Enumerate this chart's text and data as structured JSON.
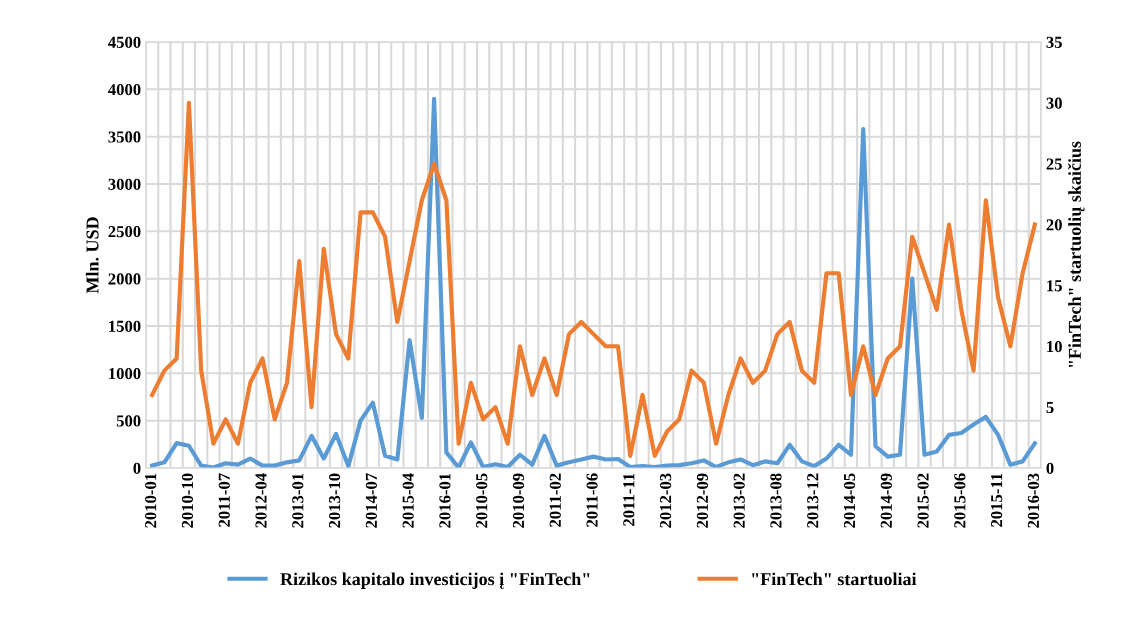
{
  "chart_data": {
    "type": "line",
    "ylabel": "Mln. USD",
    "y2label": "\"FinTech\" startuolių skaičius",
    "categories": [
      "2010-01",
      null,
      null,
      "2010-10",
      null,
      null,
      "2011-07",
      null,
      null,
      "2012-04",
      null,
      null,
      "2013-01",
      null,
      null,
      "2013-10",
      null,
      null,
      "2014-07",
      null,
      null,
      "2015-04",
      null,
      null,
      "2016-01",
      null,
      null,
      "2010-05",
      null,
      null,
      "2010-09",
      null,
      null,
      "2011-02",
      null,
      null,
      "2011-06",
      null,
      null,
      "2011-11",
      null,
      null,
      "2012-03",
      null,
      null,
      "2012-09",
      null,
      null,
      "2013-02",
      null,
      null,
      "2013-08",
      null,
      null,
      "2013-12",
      null,
      null,
      "2014-05",
      null,
      null,
      "2014-09",
      null,
      null,
      "2015-02",
      null,
      null,
      "2015-06",
      null,
      null,
      "2015-11",
      null,
      null,
      "2016-03"
    ],
    "series": [
      {
        "name": "Rizikos kapitalo investicijos į \"FinTech\"",
        "color": "#5b9bd5",
        "values": [
          25,
          60,
          263,
          235,
          25,
          5,
          50,
          35,
          100,
          25,
          25,
          60,
          80,
          340,
          100,
          360,
          20,
          500,
          690,
          130,
          90,
          1350,
          530,
          3900,
          165,
          5,
          270,
          10,
          40,
          10,
          140,
          35,
          340,
          25,
          60,
          90,
          120,
          90,
          95,
          10,
          20,
          10,
          25,
          30,
          50,
          80,
          10,
          60,
          90,
          30,
          70,
          50,
          245,
          70,
          20,
          100,
          245,
          140,
          3580,
          230,
          120,
          140,
          2000,
          140,
          175,
          350,
          370,
          460,
          540,
          350,
          35,
          70,
          260
        ]
      },
      {
        "name": "\"FinTech\" startuoliai",
        "color": "#ed7d31",
        "axis": "y2",
        "values": [
          6,
          8,
          9,
          30,
          8,
          2,
          4,
          2,
          7,
          9,
          4,
          7,
          17,
          5,
          18,
          11,
          9,
          21,
          21,
          19,
          12,
          17,
          22,
          25,
          22,
          2,
          7,
          4,
          5,
          2,
          10,
          6,
          9,
          6,
          11,
          12,
          11,
          10,
          10,
          1,
          6,
          1,
          3,
          4,
          8,
          7,
          2,
          6,
          9,
          7,
          8,
          11,
          12,
          8,
          7,
          16,
          16,
          6,
          10,
          6,
          9,
          10,
          19,
          16,
          13,
          20,
          13,
          8,
          22,
          14,
          10,
          16,
          20
        ]
      }
    ],
    "ylim": [
      0,
      4500
    ],
    "yticks": [
      0,
      500,
      1000,
      1500,
      2000,
      2500,
      3000,
      3500,
      4000,
      4500
    ],
    "y2lim": [
      0,
      35
    ],
    "y2ticks": [
      0,
      5,
      10,
      15,
      20,
      25,
      30,
      35
    ],
    "grid": true,
    "legend": "bottom"
  }
}
